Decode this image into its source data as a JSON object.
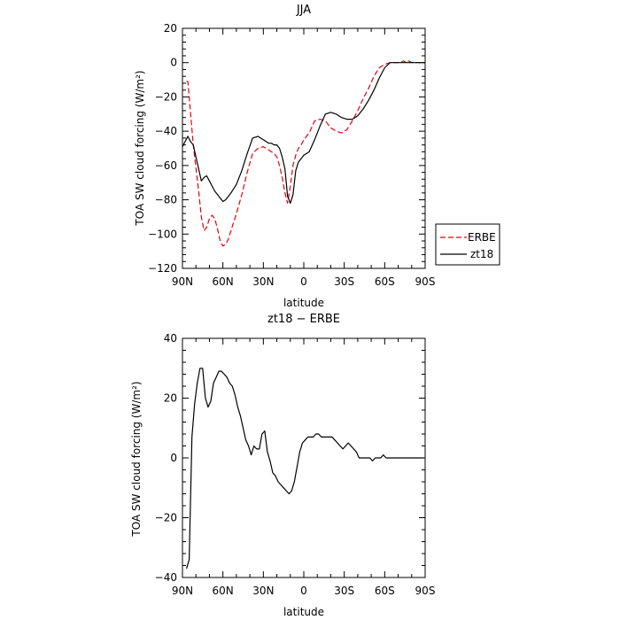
{
  "chart_data": [
    {
      "type": "line",
      "title": "JJA",
      "xlabel": "latitude",
      "ylabel": "TOA SW cloud forcing (W/m²)",
      "x_tick_labels": [
        "90N",
        "60N",
        "30N",
        "0",
        "30S",
        "60S",
        "90S"
      ],
      "xlim": [
        90,
        -90
      ],
      "ylim": [
        -120,
        20
      ],
      "y_ticks": [
        -120,
        -100,
        -80,
        -60,
        -40,
        -20,
        0,
        20
      ],
      "legend_position": "right-outside",
      "series": [
        {
          "name": "ERBE",
          "color": "#e8000b",
          "dash": "dashed",
          "x": [
            87,
            86,
            82,
            78,
            76,
            74,
            72,
            70,
            68,
            66,
            64,
            62,
            60,
            58,
            56,
            54,
            50,
            46,
            42,
            38,
            34,
            30,
            28,
            26,
            24,
            22,
            20,
            18,
            16,
            14,
            12,
            10,
            8,
            6,
            4,
            2,
            0,
            -4,
            -8,
            -12,
            -16,
            -20,
            -24,
            -28,
            -32,
            -36,
            -40,
            -44,
            -48,
            -52,
            -56,
            -60,
            -64,
            -66,
            -68,
            -70,
            -72,
            -74,
            -76,
            -78,
            -80,
            -84,
            -88,
            -90
          ],
          "y": [
            -11,
            -11,
            -48,
            -75,
            -90,
            -98,
            -96,
            -91,
            -89,
            -91,
            -97,
            -104,
            -107,
            -106,
            -103,
            -98,
            -88,
            -77,
            -64,
            -53,
            -50,
            -49,
            -50,
            -51,
            -52,
            -53,
            -55,
            -60,
            -67,
            -76,
            -82,
            -72,
            -60,
            -54,
            -50,
            -48,
            -45,
            -41,
            -34,
            -33,
            -34,
            -38,
            -40,
            -41,
            -39,
            -34,
            -28,
            -21,
            -15,
            -8,
            -3,
            -1,
            0,
            0,
            0,
            0,
            0,
            1,
            0,
            1,
            0,
            0,
            0,
            0
          ]
        },
        {
          "name": "zt18",
          "color": "#000000",
          "dash": "solid",
          "x": [
            90,
            88,
            86,
            84,
            82,
            80,
            78,
            76,
            74,
            72,
            70,
            68,
            66,
            64,
            62,
            60,
            58,
            56,
            54,
            50,
            46,
            42,
            38,
            34,
            32,
            30,
            28,
            26,
            24,
            22,
            20,
            18,
            16,
            14,
            12,
            10,
            8,
            6,
            4,
            2,
            0,
            -4,
            -8,
            -12,
            -16,
            -20,
            -24,
            -28,
            -32,
            -36,
            -40,
            -44,
            -48,
            -52,
            -56,
            -60,
            -64,
            -66,
            -68,
            -70,
            -72,
            -74,
            -76,
            -78,
            -80,
            -84,
            -88,
            -90
          ],
          "y": [
            -49,
            -46,
            -43,
            -46,
            -48,
            -55,
            -62,
            -69,
            -67,
            -66,
            -69,
            -72,
            -75,
            -77,
            -79,
            -81,
            -80,
            -78,
            -76,
            -71,
            -63,
            -53,
            -44,
            -43,
            -44,
            -45,
            -46,
            -47,
            -47,
            -48,
            -48,
            -50,
            -55,
            -62,
            -78,
            -82,
            -77,
            -63,
            -58,
            -56,
            -54,
            -52,
            -45,
            -37,
            -30,
            -29,
            -30,
            -32,
            -33,
            -33,
            -31,
            -27,
            -22,
            -16,
            -9,
            -3,
            0,
            0,
            0,
            0,
            0,
            0,
            0,
            0,
            0,
            0,
            0,
            0
          ]
        }
      ]
    },
    {
      "type": "line",
      "title": "zt18 − ERBE",
      "xlabel": "latitude",
      "ylabel": "TOA SW cloud forcing (W/m²)",
      "x_tick_labels": [
        "90N",
        "60N",
        "30N",
        "0",
        "30S",
        "60S",
        "90S"
      ],
      "xlim": [
        90,
        -90
      ],
      "ylim": [
        -40,
        40
      ],
      "y_ticks": [
        -40,
        -20,
        0,
        20,
        40
      ],
      "series": [
        {
          "name": "zt18 − ERBE",
          "color": "#000000",
          "dash": "solid",
          "x": [
            87,
            85,
            83,
            81,
            79,
            77,
            75,
            73,
            71,
            69,
            67,
            65,
            63,
            61,
            59,
            57,
            55,
            53,
            51,
            49,
            47,
            45,
            43,
            41,
            39,
            37,
            35,
            33,
            31,
            29,
            27,
            25,
            23,
            21,
            19,
            17,
            15,
            13,
            11,
            9,
            7,
            5,
            3,
            1,
            -1,
            -3,
            -5,
            -7,
            -9,
            -11,
            -13,
            -15,
            -17,
            -19,
            -21,
            -23,
            -25,
            -27,
            -29,
            -31,
            -33,
            -35,
            -37,
            -39,
            -41,
            -43,
            -45,
            -47,
            -49,
            -51,
            -53,
            -55,
            -57,
            -59,
            -61,
            -63,
            -65,
            -67,
            -69,
            -71,
            -73,
            -75,
            -77,
            -79,
            -81,
            -83,
            -85,
            -87,
            -89
          ],
          "y": [
            -37,
            -34,
            7,
            18,
            25,
            30,
            30,
            20,
            17,
            19,
            25,
            27,
            29,
            29,
            28,
            27,
            25,
            24,
            21,
            17,
            14,
            10,
            6,
            4,
            1,
            4,
            3,
            3,
            8,
            9,
            2,
            -1,
            -5,
            -6,
            -8,
            -9,
            -10,
            -11,
            -12,
            -11,
            -8,
            -3,
            2,
            5,
            6,
            7,
            7,
            7,
            8,
            8,
            7,
            7,
            7,
            7,
            7,
            6,
            5,
            4,
            3,
            4,
            5,
            4,
            3,
            2,
            0,
            0,
            0,
            0,
            0,
            -1,
            0,
            0,
            0,
            1,
            0,
            0,
            0,
            0,
            0,
            0,
            0,
            0,
            0,
            0,
            0,
            0,
            0,
            0,
            0
          ]
        }
      ]
    }
  ]
}
